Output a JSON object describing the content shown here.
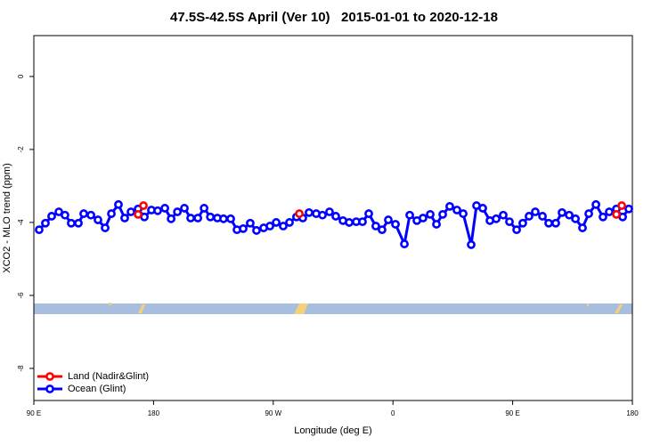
{
  "chart_data": {
    "type": "line",
    "title": "47.5S-42.5S April (Ver 10)   2015-01-01 to 2020-12-18",
    "xlabel": "Longitude (deg E)",
    "ylabel": "XCO2 - MLO trend (ppm)",
    "xlim": [
      90,
      540
    ],
    "xticks": [
      {
        "value": 90,
        "label": "90 E"
      },
      180,
      {
        "value": 270,
        "label": "90 W"
      },
      {
        "value": 360,
        "label": "0"
      },
      {
        "value": 450,
        "label": "90 E"
      },
      {
        "value": 540,
        "label": "180"
      }
    ],
    "ylim": [
      -8.88,
      1.12
    ],
    "yticks": [
      -8,
      -6,
      -4,
      -2,
      0
    ],
    "legend": "bottom-left",
    "series": [
      {
        "name": "Land (Nadir&Glint)",
        "color": "#ff0000",
        "x": [
          168.4,
          172.4,
          289.6,
          528.0,
          532.0
        ],
        "values": [
          -3.78,
          -3.54,
          -3.76,
          -3.78,
          -3.54
        ]
      },
      {
        "name": "Ocean (Glint)",
        "color": "#0000ff",
        "x": [
          94.0,
          98.7,
          103.4,
          108.8,
          113.4,
          118.1,
          123.5,
          127.5,
          132.9,
          138.2,
          143.6,
          148.3,
          153.6,
          158.3,
          163.0,
          168.4,
          173.1,
          178.4,
          183.1,
          188.5,
          193.2,
          197.9,
          203.2,
          207.9,
          213.3,
          218.0,
          222.7,
          228.0,
          232.6,
          238.0,
          242.7,
          247.4,
          252.7,
          257.4,
          262.8,
          267.5,
          272.2,
          277.5,
          282.2,
          287.5,
          292.2,
          296.9,
          302.3,
          307.0,
          312.3,
          317.0,
          322.4,
          327.1,
          332.4,
          337.1,
          341.8,
          347.1,
          351.8,
          356.5,
          361.9,
          368.6,
          372.6,
          378.0,
          382.6,
          388.0,
          392.7,
          397.4,
          402.7,
          408.1,
          412.8,
          418.8,
          422.8,
          427.5,
          432.9,
          437.6,
          442.9,
          447.6,
          453.0,
          457.6,
          462.3,
          467.0,
          472.4,
          477.1,
          482.4,
          487.1,
          492.5,
          497.2,
          502.5,
          507.2,
          512.6,
          517.9,
          522.6,
          528.0,
          532.7,
          537.3
        ],
        "values": [
          -4.2,
          -4.02,
          -3.83,
          -3.71,
          -3.8,
          -4.02,
          -4.02,
          -3.76,
          -3.8,
          -3.93,
          -4.15,
          -3.76,
          -3.51,
          -3.88,
          -3.71,
          -3.63,
          -3.85,
          -3.66,
          -3.68,
          -3.61,
          -3.9,
          -3.71,
          -3.61,
          -3.88,
          -3.88,
          -3.61,
          -3.85,
          -3.88,
          -3.9,
          -3.9,
          -4.2,
          -4.17,
          -4.02,
          -4.22,
          -4.15,
          -4.1,
          -4.0,
          -4.1,
          -4.0,
          -3.85,
          -3.88,
          -3.73,
          -3.76,
          -3.8,
          -3.71,
          -3.83,
          -3.95,
          -4.0,
          -3.98,
          -3.98,
          -3.76,
          -4.1,
          -4.2,
          -3.93,
          -4.05,
          -4.59,
          -3.8,
          -3.95,
          -3.88,
          -3.78,
          -4.05,
          -3.78,
          -3.56,
          -3.66,
          -3.76,
          -4.61,
          -3.54,
          -3.61,
          -3.95,
          -3.9,
          -3.8,
          -3.98,
          -4.2,
          -4.02,
          -3.83,
          -3.71,
          -3.83,
          -4.02,
          -4.02,
          -3.73,
          -3.8,
          -3.9,
          -4.15,
          -3.76,
          -3.51,
          -3.85,
          -3.71,
          -3.63,
          -3.85,
          -3.63
        ]
      }
    ]
  }
}
